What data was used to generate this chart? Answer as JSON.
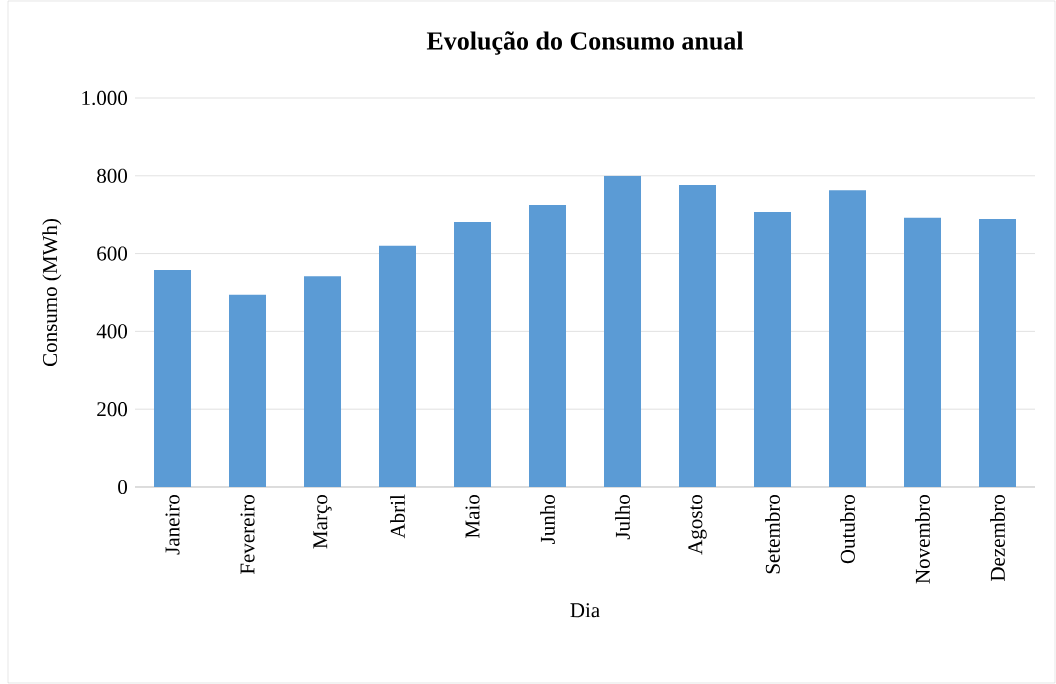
{
  "chart_data": {
    "type": "bar",
    "title": "Evolução do Consumo anual",
    "xlabel": "Dia",
    "ylabel": "Consumo (MWh)",
    "categories": [
      "Janeiro",
      "Fevereiro",
      "Março",
      "Abril",
      "Maio",
      "Junho",
      "Julho",
      "Agosto",
      "Setembro",
      "Outubro",
      "Novembro",
      "Dezembro"
    ],
    "values": [
      558,
      494,
      542,
      620,
      681,
      725,
      800,
      776,
      707,
      763,
      692,
      689
    ],
    "color": "#5b9bd5",
    "ylim": [
      0,
      1000
    ],
    "yticks": [
      0,
      200,
      400,
      600,
      800,
      {
        "value": 1000,
        "label": "1.000"
      }
    ],
    "grid": "y"
  }
}
